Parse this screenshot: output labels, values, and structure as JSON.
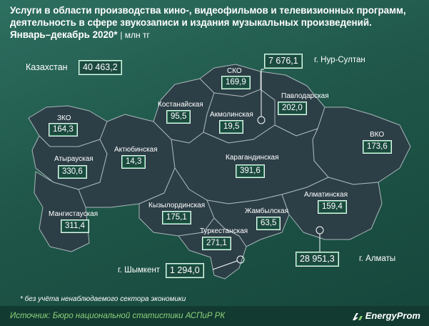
{
  "title": {
    "line1": "Услуги в области производства кино-, видеофильмов и телевизионных программ,",
    "line2": "деятельность в сфере звукозаписи и издания музыкальных произведений.",
    "line3": "Январь–декабрь 2020*",
    "unit": "| млн тг"
  },
  "country": {
    "label": "Казахстан",
    "value": "40 463,2"
  },
  "regions": {
    "zko": {
      "label": "ЗКО",
      "value": "164,3"
    },
    "atyrau": {
      "label": "Атырауская",
      "value": "330,6"
    },
    "aktobe": {
      "label": "Актюбинская",
      "value": "14,3"
    },
    "mangystau": {
      "label": "Мангистауская",
      "value": "311,4"
    },
    "kostanay": {
      "label": "Костанайская",
      "value": "95,5"
    },
    "sko": {
      "label": "СКО",
      "value": "169,9"
    },
    "akmola": {
      "label": "Акмолинская",
      "value": "19,5"
    },
    "pavlodar": {
      "label": "Павлодарская",
      "value": "202,0"
    },
    "vko": {
      "label": "ВКО",
      "value": "173,6"
    },
    "karaganda": {
      "label": "Карагандинская",
      "value": "391,6"
    },
    "kyzylorda": {
      "label": "Кызылординская",
      "value": "175,1"
    },
    "zhambyl": {
      "label": "Жамбылская",
      "value": "63,5"
    },
    "almaty_region": {
      "label": "Алматинская",
      "value": "159,4"
    },
    "turkestan": {
      "label": "Туркестанская",
      "value": "271,1"
    }
  },
  "cities": {
    "nur_sultan": {
      "label": "г. Нур-Султан",
      "value": "7 676,1"
    },
    "shymkent": {
      "label": "г. Шымкент",
      "value": "1 294,0"
    },
    "almaty": {
      "label": "г. Алматы",
      "value": "28 951,3"
    }
  },
  "footnote": "* без учёта ненаблюдаемого сектора экономики",
  "source": "Источник: Бюро национальной статистики АСПиР РК",
  "brand": "EnergyProm",
  "colors": {
    "background": "#1f5649",
    "map_fill": "#2c3e46",
    "border": "#a9b6ba",
    "source_text": "#8dd17a"
  }
}
